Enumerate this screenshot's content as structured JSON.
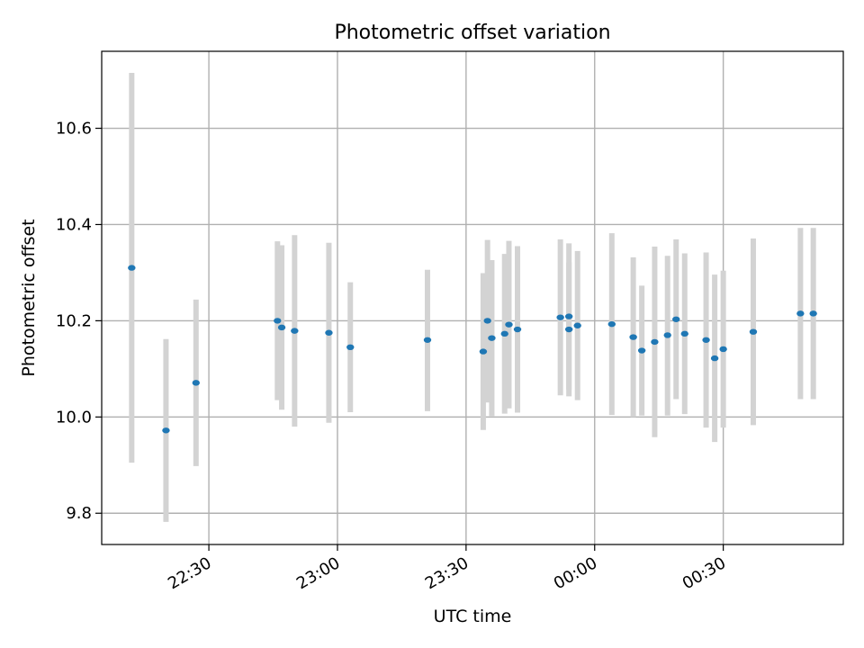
{
  "chart_data": {
    "type": "scatter",
    "title": "Photometric offset variation",
    "xlabel": "UTC time",
    "ylabel": "Photometric offset",
    "x_ticks": [
      "22:30",
      "23:00",
      "23:30",
      "00:00",
      "00:30"
    ],
    "y_ticks": [
      "9.8",
      "10.0",
      "10.2",
      "10.4",
      "10.6"
    ],
    "xlim": [
      "22:05",
      "00:58"
    ],
    "ylim": [
      9.735,
      10.76
    ],
    "grid": true,
    "marker_color": "#1f77b4",
    "errorbar_color": "#d3d3d3",
    "points": [
      {
        "x": "22:12",
        "y": 10.31,
        "lo": 9.905,
        "hi": 10.715
      },
      {
        "x": "22:20",
        "y": 9.972,
        "lo": 9.782,
        "hi": 10.162
      },
      {
        "x": "22:27",
        "y": 10.071,
        "lo": 9.898,
        "hi": 10.244
      },
      {
        "x": "22:46",
        "y": 10.2,
        "lo": 10.035,
        "hi": 10.365
      },
      {
        "x": "22:47",
        "y": 10.186,
        "lo": 10.015,
        "hi": 10.357
      },
      {
        "x": "22:50",
        "y": 10.179,
        "lo": 9.98,
        "hi": 10.378
      },
      {
        "x": "22:58",
        "y": 10.175,
        "lo": 9.988,
        "hi": 10.362
      },
      {
        "x": "23:03",
        "y": 10.145,
        "lo": 10.01,
        "hi": 10.28
      },
      {
        "x": "23:21",
        "y": 10.16,
        "lo": 10.012,
        "hi": 10.306
      },
      {
        "x": "23:34",
        "y": 10.136,
        "lo": 9.973,
        "hi": 10.299
      },
      {
        "x": "23:35",
        "y": 10.2,
        "lo": 10.03,
        "hi": 10.368
      },
      {
        "x": "23:36",
        "y": 10.164,
        "lo": 10.002,
        "hi": 10.326
      },
      {
        "x": "23:39",
        "y": 10.173,
        "lo": 10.007,
        "hi": 10.339
      },
      {
        "x": "23:40",
        "y": 10.192,
        "lo": 10.018,
        "hi": 10.366
      },
      {
        "x": "23:42",
        "y": 10.182,
        "lo": 10.009,
        "hi": 10.355
      },
      {
        "x": "23:52",
        "y": 10.207,
        "lo": 10.045,
        "hi": 10.369
      },
      {
        "x": "23:54",
        "y": 10.182,
        "lo": 10.043,
        "hi": 10.321
      },
      {
        "x": "23:54",
        "y": 10.209,
        "lo": 10.057,
        "hi": 10.361
      },
      {
        "x": "23:56",
        "y": 10.19,
        "lo": 10.035,
        "hi": 10.345
      },
      {
        "x": "00:04",
        "y": 10.193,
        "lo": 10.004,
        "hi": 10.382
      },
      {
        "x": "00:09",
        "y": 10.166,
        "lo": 10.0,
        "hi": 10.332
      },
      {
        "x": "00:11",
        "y": 10.138,
        "lo": 10.003,
        "hi": 10.273
      },
      {
        "x": "00:14",
        "y": 10.156,
        "lo": 9.958,
        "hi": 10.354
      },
      {
        "x": "00:17",
        "y": 10.17,
        "lo": 10.003,
        "hi": 10.335
      },
      {
        "x": "00:19",
        "y": 10.203,
        "lo": 10.037,
        "hi": 10.369
      },
      {
        "x": "00:21",
        "y": 10.173,
        "lo": 10.006,
        "hi": 10.34
      },
      {
        "x": "00:26",
        "y": 10.16,
        "lo": 9.978,
        "hi": 10.342
      },
      {
        "x": "00:28",
        "y": 10.122,
        "lo": 9.948,
        "hi": 10.296
      },
      {
        "x": "00:30",
        "y": 10.141,
        "lo": 9.978,
        "hi": 10.304
      },
      {
        "x": "00:37",
        "y": 10.177,
        "lo": 9.983,
        "hi": 10.371
      },
      {
        "x": "00:48",
        "y": 10.215,
        "lo": 10.037,
        "hi": 10.393
      },
      {
        "x": "00:51",
        "y": 10.215,
        "lo": 10.037,
        "hi": 10.393
      }
    ]
  }
}
